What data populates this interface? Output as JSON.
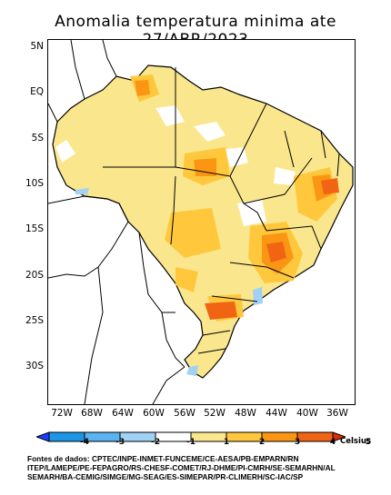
{
  "title": "Anomalia temperatura minima ate 27/ABR/2023",
  "lat_labels": [
    "5N",
    "EQ",
    "5S",
    "10S",
    "15S",
    "20S",
    "25S",
    "30S"
  ],
  "lon_labels": [
    "72W",
    "68W",
    "64W",
    "60W",
    "56W",
    "52W",
    "48W",
    "44W",
    "40W",
    "36W"
  ],
  "colorbar": {
    "ticks": [
      "-4",
      "-3",
      "-2",
      "-1",
      "1",
      "2",
      "3",
      "4",
      "5"
    ],
    "colors": [
      "#1e3cff",
      "#1e96e6",
      "#5ab4f0",
      "#a0d2f5",
      "#ffffff",
      "#fae68c",
      "#ffc83c",
      "#fa9614",
      "#f06414",
      "#dc2d0a"
    ],
    "unit": "Celsius"
  },
  "sources": {
    "line1": "Fontes de dados: CPTEC/INPE-INMET-FUNCEME/CE-AESA/PB-EMPARN/RN",
    "line2": "ITEP/LAMEPE/PE-FEPAGRO/RS-CHESF-COMET/RJ-DHME/PI-CMRH/SE-SEMARHN/AL",
    "line3": "SEMARH/BA-CEMIG/SIMGE/MG-SEAG/ES-SIMEPAR/PR-CLIMERH/SC-IAC/SP"
  }
}
